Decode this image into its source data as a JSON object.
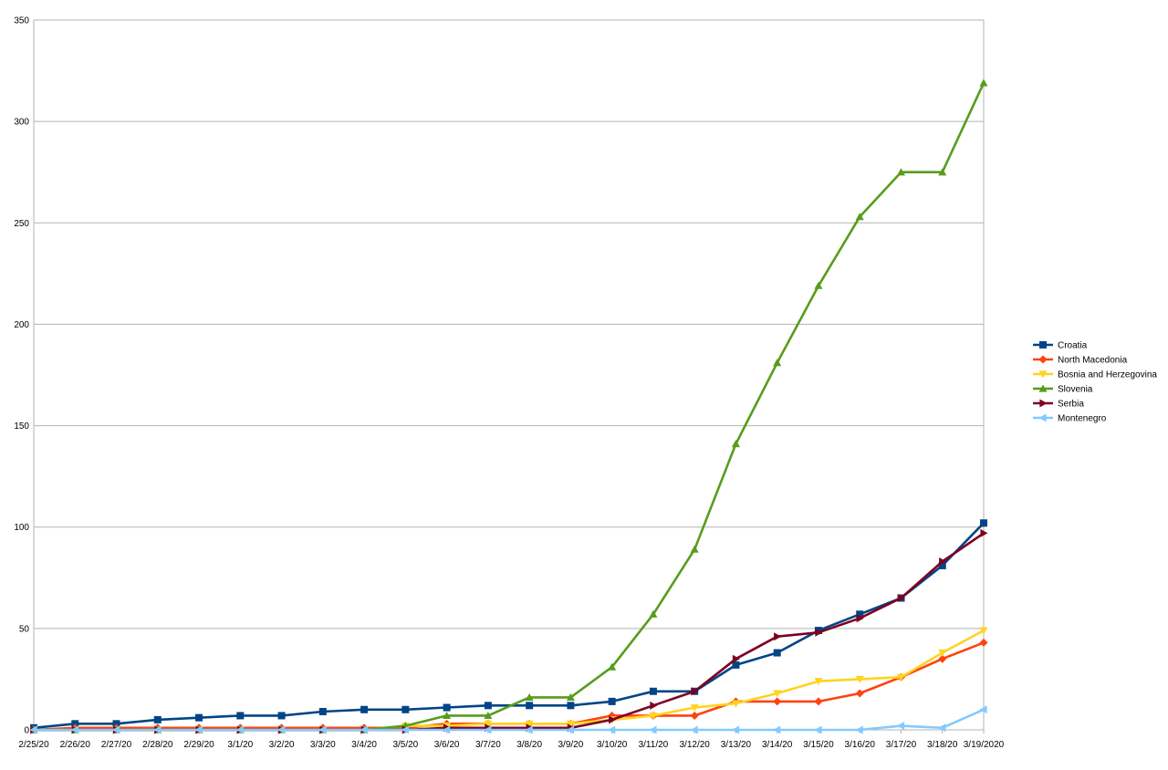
{
  "chart_data": {
    "type": "line",
    "title": "",
    "xlabel": "",
    "ylabel": "",
    "ylim": [
      0,
      350
    ],
    "yticks": [
      "0",
      "50",
      "100",
      "150",
      "200",
      "250",
      "300",
      "350"
    ],
    "grid": true,
    "legend_position": "right",
    "categories": [
      "2/25/20",
      "2/26/20",
      "2/27/20",
      "2/28/20",
      "2/29/20",
      "3/1/20",
      "3/2/20",
      "3/3/20",
      "3/4/20",
      "3/5/20",
      "3/6/20",
      "3/7/20",
      "3/8/20",
      "3/9/20",
      "3/10/20",
      "3/11/20",
      "3/12/20",
      "3/13/20",
      "3/14/20",
      "3/15/20",
      "3/16/20",
      "3/17/20",
      "3/18/20",
      "3/19/2020"
    ],
    "series": [
      {
        "name": "Croatia",
        "color": "#004586",
        "marker": "square",
        "values": [
          1,
          3,
          3,
          5,
          6,
          7,
          7,
          9,
          10,
          10,
          11,
          12,
          12,
          12,
          14,
          19,
          19,
          32,
          38,
          49,
          57,
          65,
          81,
          102
        ]
      },
      {
        "name": "North Macedonia",
        "color": "#ff420e",
        "marker": "diamond",
        "values": [
          0,
          1,
          1,
          1,
          1,
          1,
          1,
          1,
          1,
          1,
          3,
          3,
          3,
          3,
          7,
          7,
          7,
          14,
          14,
          14,
          18,
          26,
          35,
          43
        ]
      },
      {
        "name": "Bosnia and Herzegovina",
        "color": "#ffd320",
        "marker": "triangle-down",
        "values": [
          0,
          0,
          0,
          0,
          0,
          0,
          0,
          0,
          0,
          2,
          2,
          3,
          3,
          3,
          5,
          7,
          11,
          13,
          18,
          24,
          25,
          26,
          38,
          49
        ]
      },
      {
        "name": "Slovenia",
        "color": "#579d1c",
        "marker": "triangle-up",
        "values": [
          0,
          0,
          0,
          0,
          0,
          0,
          0,
          0,
          0,
          2,
          7,
          7,
          16,
          16,
          31,
          57,
          89,
          141,
          181,
          219,
          253,
          275,
          275,
          319
        ]
      },
      {
        "name": "Serbia",
        "color": "#7e0021",
        "marker": "triangle-right",
        "values": [
          0,
          0,
          0,
          0,
          0,
          0,
          0,
          0,
          0,
          0,
          1,
          1,
          1,
          1,
          5,
          12,
          19,
          35,
          46,
          48,
          55,
          65,
          83,
          97
        ]
      },
      {
        "name": "Montenegro",
        "color": "#83caff",
        "marker": "triangle-left",
        "values": [
          0,
          0,
          0,
          0,
          0,
          0,
          0,
          0,
          0,
          0,
          0,
          0,
          0,
          0,
          0,
          0,
          0,
          0,
          0,
          0,
          0,
          2,
          1,
          10
        ]
      }
    ]
  }
}
